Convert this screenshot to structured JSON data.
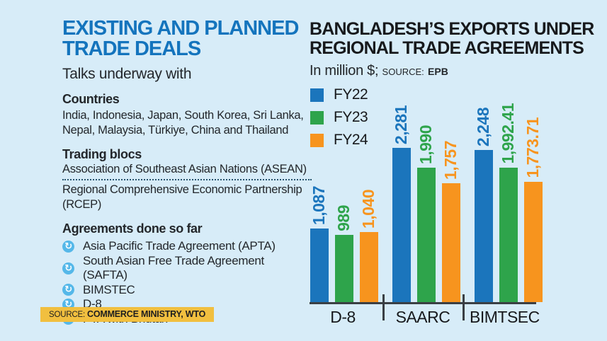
{
  "colors": {
    "background": "#d7ecf8",
    "accent_blue": "#1b75bc",
    "green": "#2ea44b",
    "orange": "#f7941e",
    "bullet_blue": "#55b8e9",
    "source_tag_yellow": "#f1bf3f"
  },
  "left": {
    "title_line1": "EXISTING AND PLANNED",
    "title_line2": "TRADE DEALS",
    "subtitle": "Talks underway with",
    "countries_heading": "Countries",
    "countries_text": "India, Indonesia, Japan, South Korea, Sri Lanka, Nepal, Malaysia, Türkiye, China and Thailand",
    "blocs_heading": "Trading blocs",
    "blocs": [
      {
        "label": "Association of Southeast Asian Nations (ASEAN)"
      },
      {
        "label": "Regional Comprehensive Economic Partnership (RCEP)"
      }
    ],
    "agreements_heading": "Agreements done so far",
    "agreements": [
      "Asia Pacific Trade Agreement (APTA)",
      "South Asian Free Trade Agreement (SAFTA)",
      "BIMSTEC",
      "D-8",
      "PTA with Bhutan"
    ],
    "source_label": "SOURCE:",
    "source_value": "COMMERCE MINISTRY, WTO"
  },
  "chart": {
    "title_line1": "BANGLADESH’S EXPORTS UNDER",
    "title_line2": "REGIONAL TRADE AGREEMENTS",
    "unit": "In million $;",
    "source_label": "SOURCE:",
    "source_value": "EPB"
  },
  "chart_data": {
    "type": "bar",
    "title": "Bangladesh’s exports under regional trade agreements",
    "unit": "million $",
    "categories": [
      "D-8",
      "SAARC",
      "BIMTSEC"
    ],
    "series": [
      {
        "name": "FY22",
        "color": "#1b75bc",
        "values": [
          1087,
          2281,
          2248
        ],
        "labels": [
          "1,087",
          "2,281",
          "2,248"
        ]
      },
      {
        "name": "FY23",
        "color": "#2ea44b",
        "values": [
          989,
          1990,
          1992.41
        ],
        "labels": [
          "989",
          "1,990",
          "1,992.41"
        ]
      },
      {
        "name": "FY24",
        "color": "#f7941e",
        "values": [
          1040,
          1757,
          1773.71
        ],
        "labels": [
          "1,040",
          "1,757",
          "1,773.71"
        ]
      }
    ],
    "legend_position": "top-left",
    "ylim": [
      0,
      2400
    ],
    "grid": false,
    "value_labels": "rotated-90-above-bars"
  }
}
